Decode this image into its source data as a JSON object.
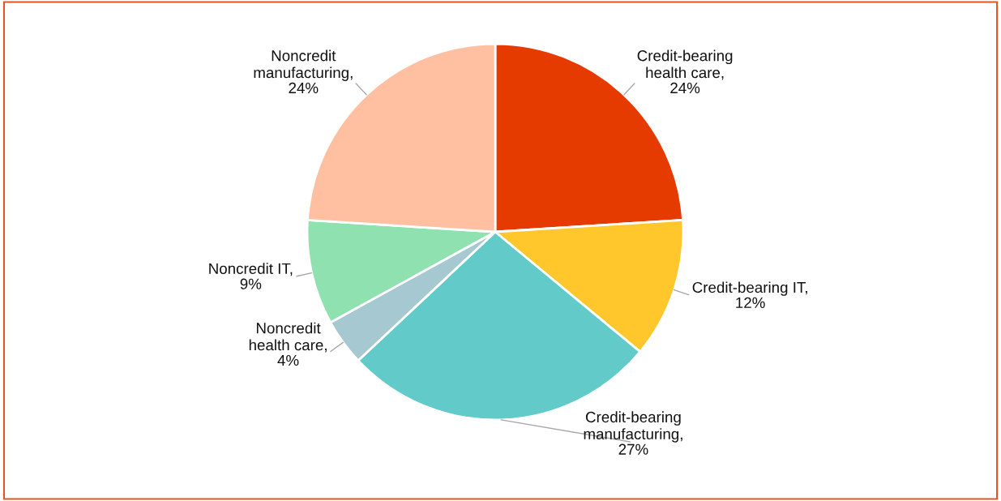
{
  "chart_data": {
    "type": "pie",
    "categories": [
      "Credit-bearing health care",
      "Credit-bearing IT",
      "Credit-bearing manufacturing",
      "Noncredit health care",
      "Noncredit IT",
      "Noncredit manufacturing"
    ],
    "values": [
      24,
      12,
      27,
      4,
      9,
      24
    ],
    "colors": [
      "#e53a00",
      "#ffc72c",
      "#62cbc9",
      "#a5c8d1",
      "#8fe2b0",
      "#ffbfa0"
    ],
    "value_labels": [
      ",\n24%",
      ",\n12%",
      ",\n27%",
      ",\n4%",
      ",\n9%",
      ",\n24%"
    ]
  }
}
